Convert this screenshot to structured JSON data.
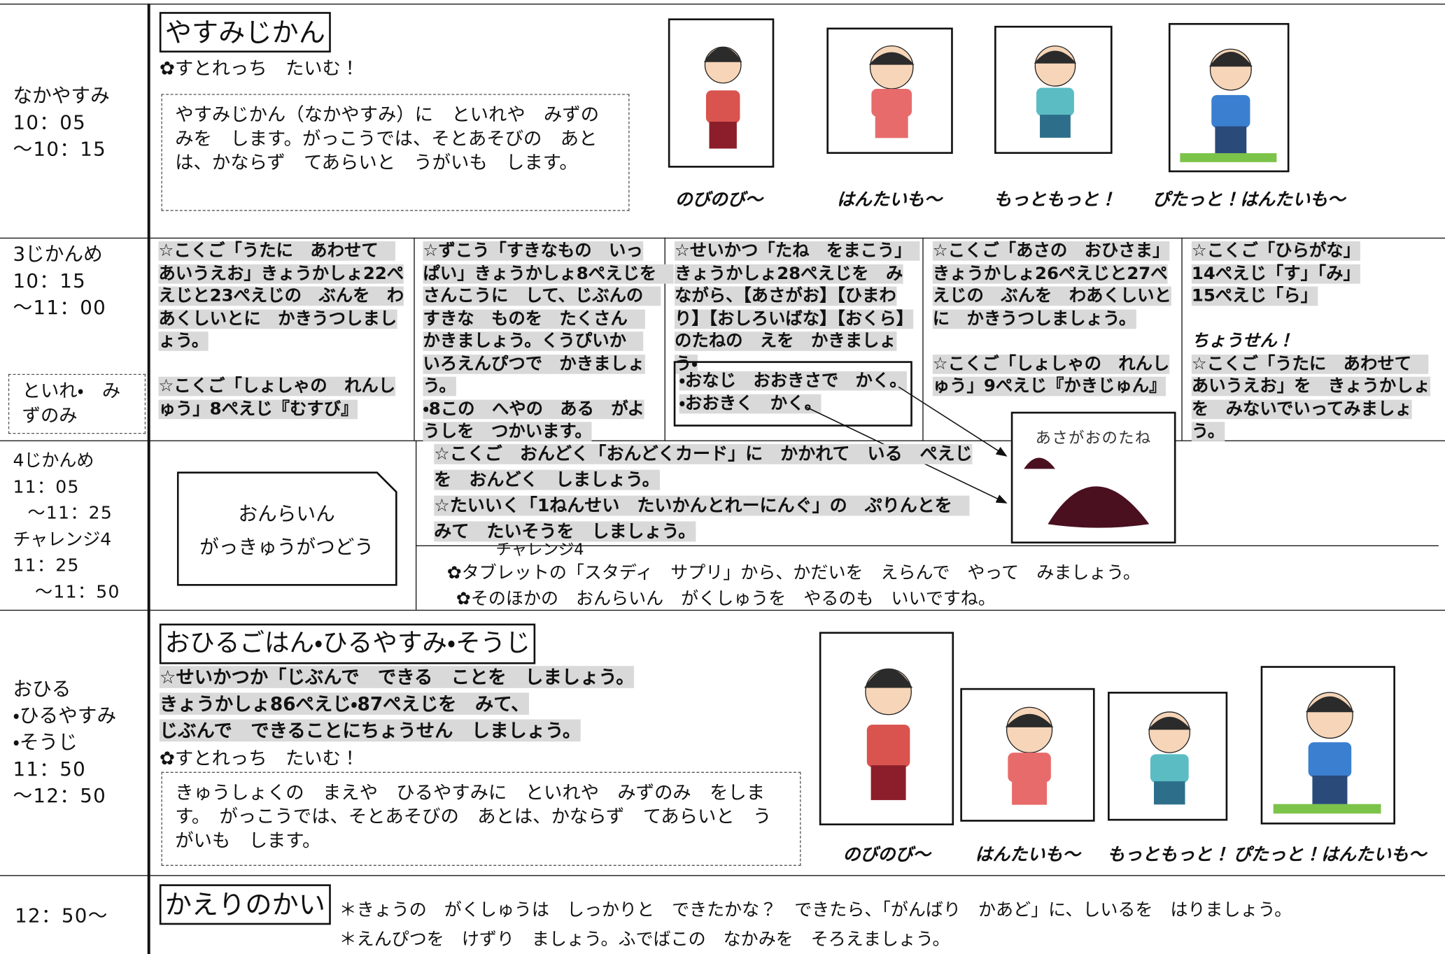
{
  "rows": [
    {
      "time": [
        "なかやすみ",
        "10：05",
        "～10：15"
      ],
      "title": "やすみじかん",
      "sub": "✿すとれっち　たいむ！",
      "note": "やすみじかん（なかやすみ）に　といれや　みずのみを　します。がっこうでは、そとあそびの　あとは、かならず　てあらいと　うがいも　します。",
      "captions": [
        "のびのび～",
        "はんたいも～",
        "もっともっと！",
        "ぴたっと！はんたいも～"
      ]
    },
    {
      "time": [
        "3じかんめ",
        "10：15",
        "～11：00"
      ],
      "extra": "といれ・　みずのみ",
      "columns": [
        [
          "☆こくご「うたに　あわせて　あいうえお」きょうかしょ22ぺえじと23ぺえじの　ぶんを　わあくしいとに　かきうつしましょう。",
          "☆こくご「しょしゃの　れんしゅう」8ぺえじ『むすび』"
        ],
        [
          "☆ずこう「すきなもの　いっぱい」きょうかしょ8ぺえじを　さんこうに　して、じぶんの　すきな　ものを　たくさん　かきましょう。くうぴいか　いろえんぴつで　かきましょう。",
          "・8この　へやの　ある　がようしを　つかいます。"
        ],
        [
          "☆せいかつ「たね　をまこう」　きょうかしょ28ぺえじを　みながら、【あさがお】【ひまわり】【おしろいばな】【おくら】のたねの　えを　かきましょう・"
        ],
        [
          "☆こくご「あさの　おひさま」きょうかしょ26ぺえじと27ぺえじの　ぶんを　わあくしいとに　かきうつしましょう。",
          "☆こくご「しょしゃの　れんしゅう」9ぺえじ『かきじゅん』"
        ],
        [
          "☆こくご「ひらがな」",
          "14ぺえじ「す」「み」",
          "15ぺえじ「ら」",
          "ちょうせん！",
          "☆こくご「うたに　あわせて　あいうえお」を　きょうかしょを　みないでいってみましょう。"
        ]
      ],
      "box_items": [
        "・おなじ　おおきさで　かく。",
        "・おおきく　かく。"
      ],
      "seed_label": "あさがおのたね"
    },
    {
      "time": [
        "4じかんめ",
        "11：05",
        "～11：25",
        "チャレンジ4",
        "11：25",
        "～11：50"
      ],
      "box": [
        "おんらいん",
        "がっきゅうがつどう"
      ],
      "lines": [
        "☆こくご　おんどく「おんどくカード」に　かかれて　いる　ぺえじを　おんどく　しましょう。",
        "☆たいいく「1ねんせい　たいかんとれーにんぐ」の　ぷりんとを　みて　たいそうを　しましょう。"
      ],
      "challenge": "チャレンジ4",
      "challenge_lines": [
        "✿タブレットの「スタディ　サプリ」から、かだいを　えらんで　やって　みましょう。",
        "✿そのほかの　おんらいん　がくしゅうを　やるのも　いいですね。"
      ]
    },
    {
      "time": [
        "おひる",
        "・ひるやすみ",
        "・そうじ",
        "11：50",
        "～12：50"
      ],
      "title": "おひるごはん・ひるやすみ・そうじ",
      "lines": [
        "☆せいかつか「じぶんで　できる　ことを　しましょう。",
        "きょうかしょ86ぺえじ・87ぺえじを　みて、",
        "じぶんで　できることにちょうせん　しましょう。"
      ],
      "sub": "✿すとれっち　たいむ！",
      "note": "きゅうしょくの　まえや　ひるやすみに　といれや　みずのみ　をします。　がっこうでは、そとあそびの　あとは、かならず　てあらいと　うがいも　します。",
      "captions": [
        "のびのび～",
        "はんたいも～",
        "もっともっと！",
        "ぴたっと！はんたいも～"
      ]
    },
    {
      "time": [
        "12：50～"
      ],
      "title": "かえりのかい",
      "lines": [
        "＊きょうの　がくしゅうは　しっかりと　できたかな？　できたら、「がんばり　かあど」に、しいるを　はりましょう。",
        "＊えんぴつを　けずり　ましょう。ふでばこの　なかみを　そろえましょう。"
      ]
    }
  ]
}
